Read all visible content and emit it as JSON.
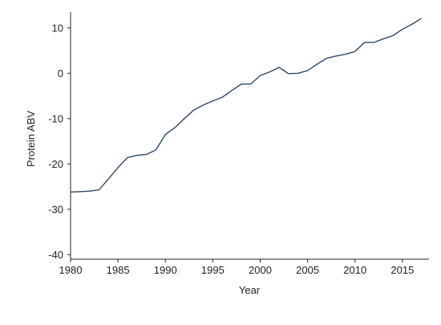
{
  "chart_data": {
    "type": "line",
    "title": "",
    "xlabel": "Year",
    "ylabel": "Protein ABV",
    "xlim": [
      1980,
      2017.8
    ],
    "ylim": [
      -41,
      13.5
    ],
    "x_ticks": [
      1980,
      1985,
      1990,
      1995,
      2000,
      2005,
      2010,
      2015
    ],
    "y_ticks": [
      -40,
      -30,
      -20,
      -10,
      0,
      10
    ],
    "grid": false,
    "legend": "none",
    "series": [
      {
        "color": "#2e4a6b",
        "x": [
          1980,
          1981,
          1982,
          1983,
          1984,
          1985,
          1986,
          1987,
          1988,
          1989,
          1990,
          1991,
          1992,
          1993,
          1994,
          1995,
          1996,
          1997,
          1998,
          1999,
          2000,
          2001,
          2002,
          2003,
          2004,
          2005,
          2006,
          2007,
          2008,
          2009,
          2010,
          2011,
          2012,
          2013,
          2014,
          2015,
          2016,
          2017
        ],
        "y": [
          -26.2,
          -26.1,
          -26.0,
          -25.7,
          -23.3,
          -20.8,
          -18.6,
          -18.1,
          -17.9,
          -16.9,
          -13.5,
          -12.0,
          -10.0,
          -8.1,
          -7.0,
          -6.1,
          -5.3,
          -3.8,
          -2.4,
          -2.4,
          -0.5,
          0.3,
          1.3,
          -0.1,
          0.0,
          0.6,
          2.0,
          3.3,
          3.8,
          4.2,
          4.8,
          6.8,
          6.8,
          7.6,
          8.3,
          9.7,
          10.8,
          12.1
        ]
      }
    ]
  }
}
